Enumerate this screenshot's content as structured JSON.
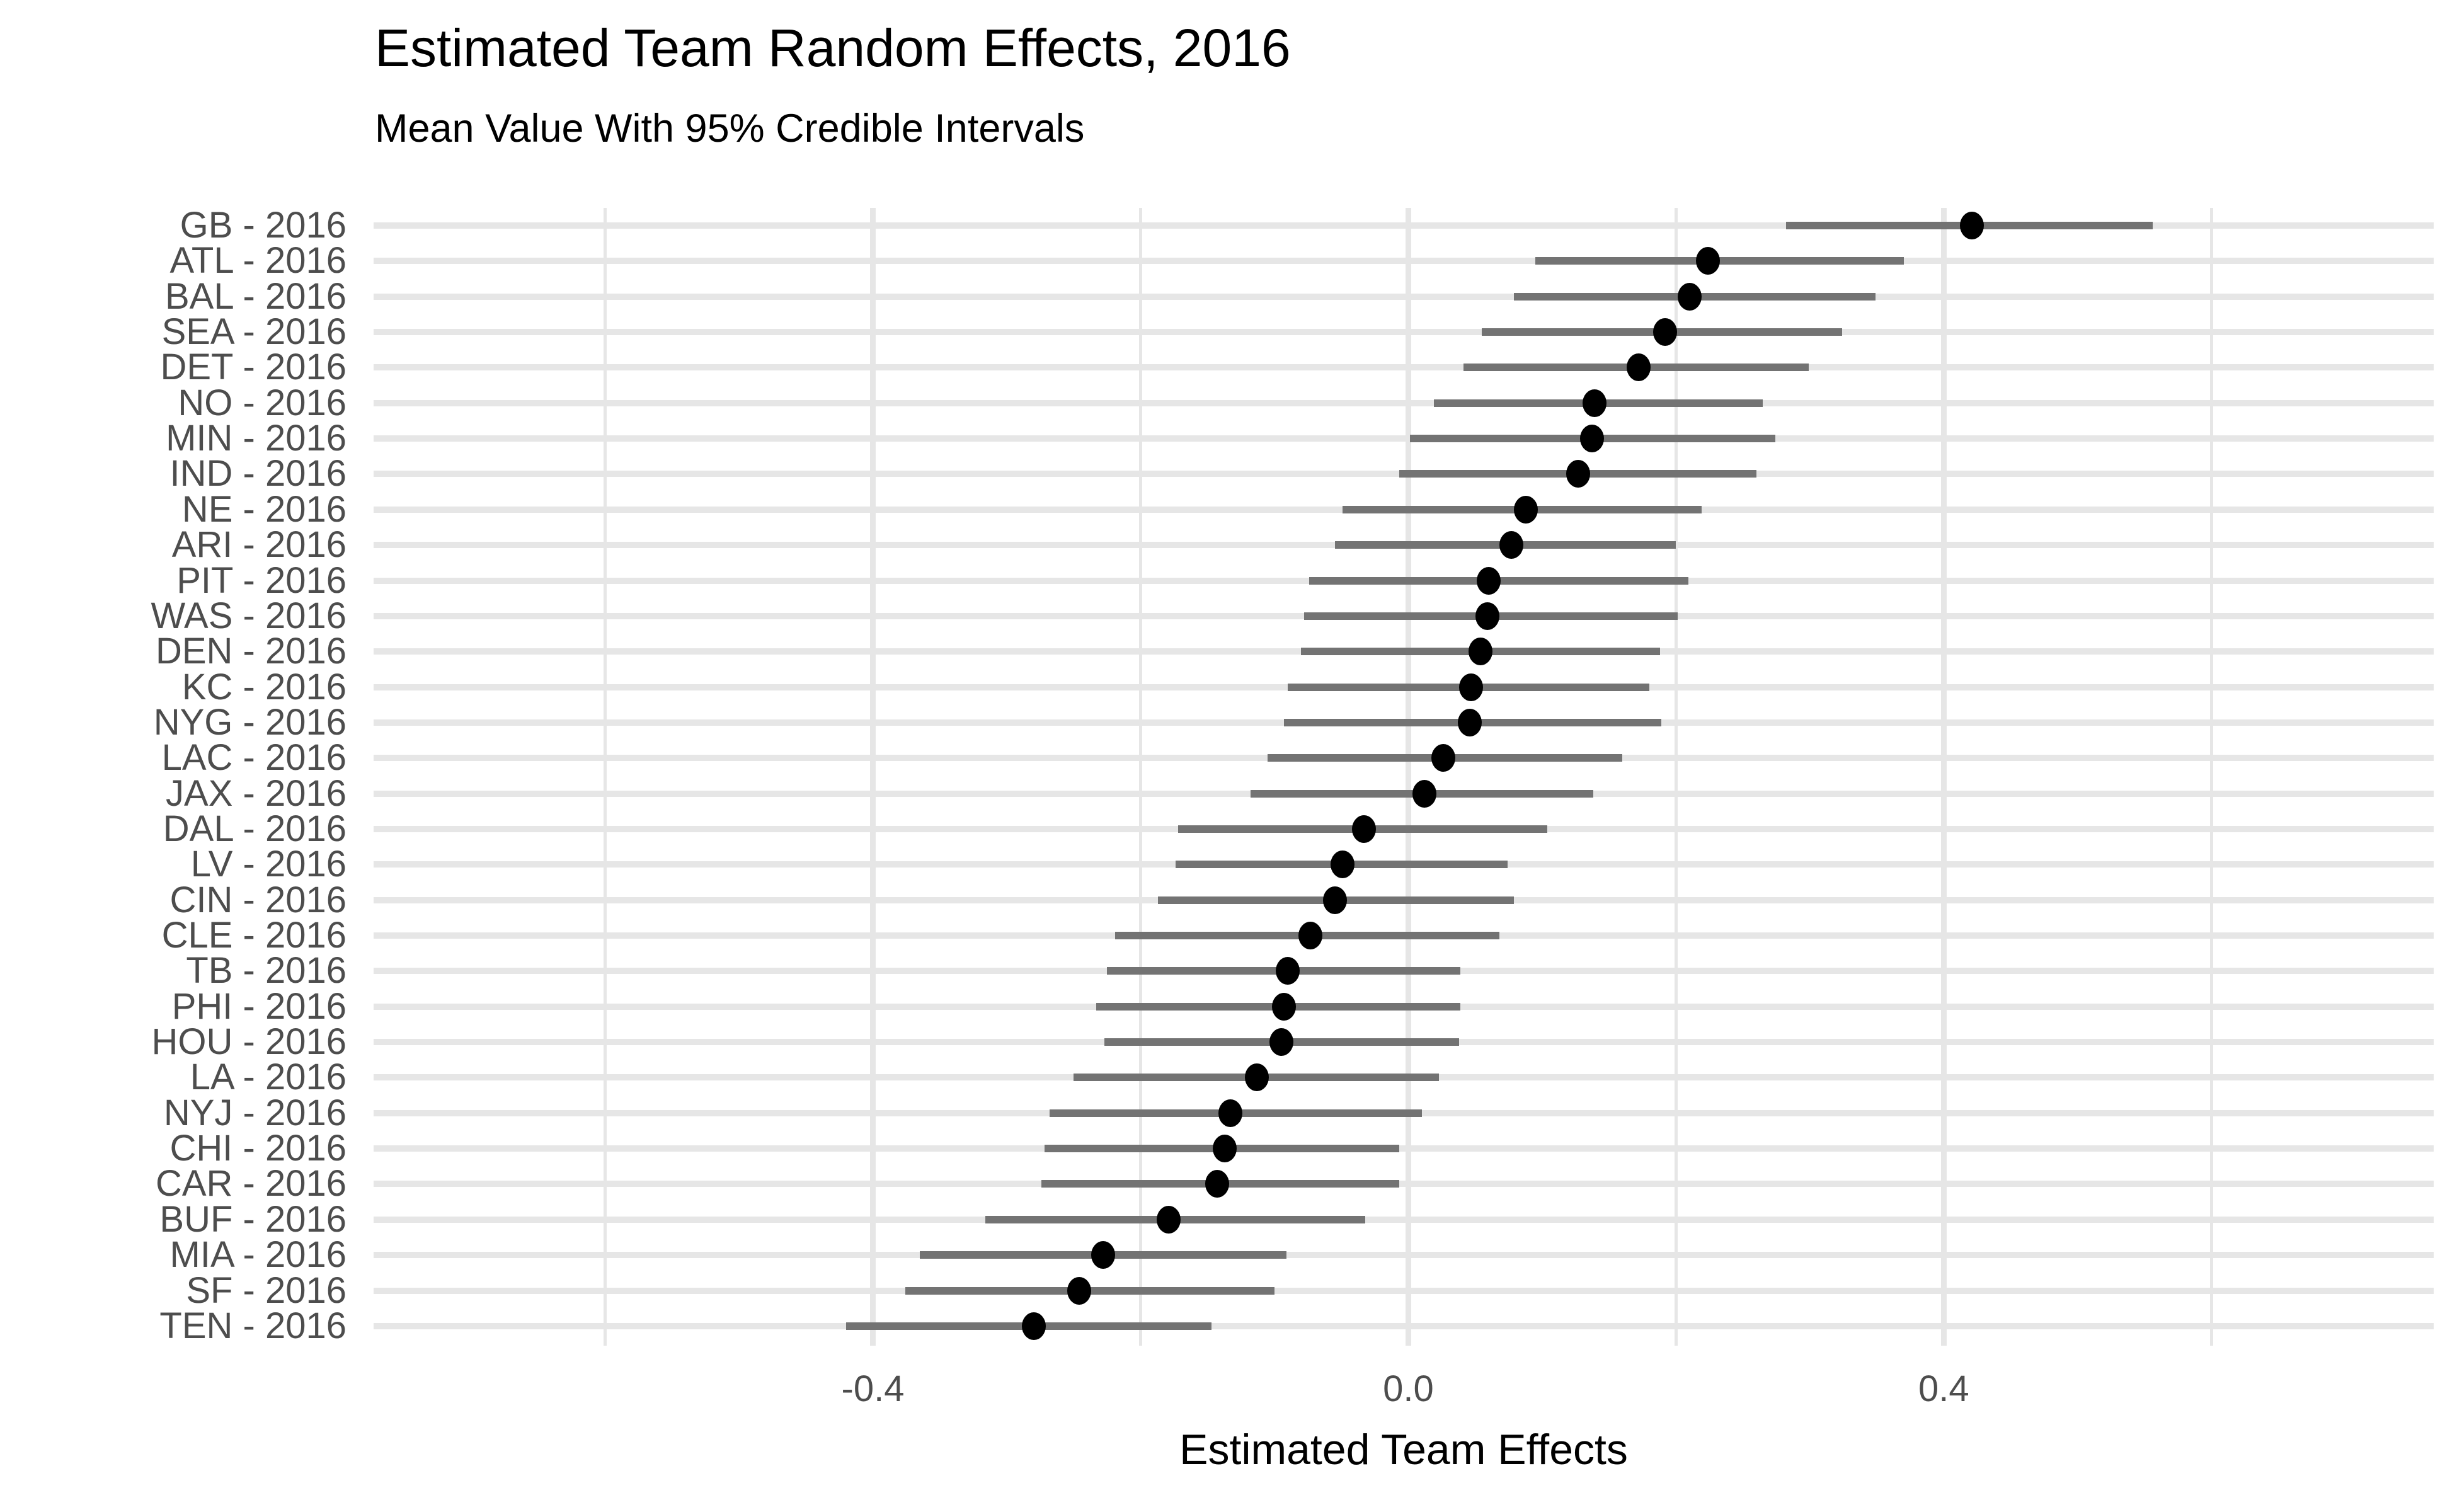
{
  "chart": {
    "title": "Estimated Team Random Effects, 2016",
    "subtitle": "Mean Value With 95% Credible Intervals",
    "x_axis_title": "Estimated Team Effects"
  },
  "colors": {
    "interval_bar": "#737373",
    "point": "#000000",
    "gridline": "#e6e6e6",
    "row_stripe": "#e6e6e6",
    "axis_text": "#4d4d4d",
    "title_text": "#000000",
    "background": "#ffffff"
  },
  "chart_data": {
    "type": "scatter",
    "subtype": "pointrange-forest",
    "title": "Estimated Team Random Effects, 2016",
    "subtitle": "Mean Value With 95% Credible Intervals",
    "xlabel": "Estimated Team Effects",
    "ylabel": "",
    "xlim": [
      -0.773,
      0.766
    ],
    "grid": "on",
    "legend": "none",
    "x_ticks": [
      {
        "value": -0.4,
        "label": "-0.4"
      },
      {
        "value": 0.0,
        "label": "0.0"
      },
      {
        "value": 0.4,
        "label": "0.4"
      }
    ],
    "x_gridlines_minor": [
      -0.6,
      -0.2,
      0.2,
      0.6
    ],
    "points": [
      {
        "label": "GB - 2016",
        "team": "GB",
        "year": 2016,
        "mean": 0.421,
        "lower": 0.282,
        "upper": 0.556
      },
      {
        "label": "ATL - 2016",
        "team": "ATL",
        "year": 2016,
        "mean": 0.224,
        "lower": 0.095,
        "upper": 0.37
      },
      {
        "label": "BAL - 2016",
        "team": "BAL",
        "year": 2016,
        "mean": 0.21,
        "lower": 0.079,
        "upper": 0.349
      },
      {
        "label": "SEA - 2016",
        "team": "SEA",
        "year": 2016,
        "mean": 0.192,
        "lower": 0.055,
        "upper": 0.324
      },
      {
        "label": "DET - 2016",
        "team": "DET",
        "year": 2016,
        "mean": 0.172,
        "lower": 0.041,
        "upper": 0.299
      },
      {
        "label": "NO - 2016",
        "team": "NO",
        "year": 2016,
        "mean": 0.139,
        "lower": 0.019,
        "upper": 0.265
      },
      {
        "label": "MIN - 2016",
        "team": "MIN",
        "year": 2016,
        "mean": 0.137,
        "lower": 0.001,
        "upper": 0.274
      },
      {
        "label": "IND - 2016",
        "team": "IND",
        "year": 2016,
        "mean": 0.127,
        "lower": -0.007,
        "upper": 0.26
      },
      {
        "label": "NE - 2016",
        "team": "NE",
        "year": 2016,
        "mean": 0.088,
        "lower": -0.049,
        "upper": 0.219
      },
      {
        "label": "ARI - 2016",
        "team": "ARI",
        "year": 2016,
        "mean": 0.077,
        "lower": -0.055,
        "upper": 0.2
      },
      {
        "label": "PIT - 2016",
        "team": "PIT",
        "year": 2016,
        "mean": 0.06,
        "lower": -0.074,
        "upper": 0.209
      },
      {
        "label": "WAS - 2016",
        "team": "WAS",
        "year": 2016,
        "mean": 0.059,
        "lower": -0.078,
        "upper": 0.201
      },
      {
        "label": "DEN - 2016",
        "team": "DEN",
        "year": 2016,
        "mean": 0.054,
        "lower": -0.08,
        "upper": 0.188
      },
      {
        "label": "KC - 2016",
        "team": "KC",
        "year": 2016,
        "mean": 0.047,
        "lower": -0.09,
        "upper": 0.18
      },
      {
        "label": "NYG - 2016",
        "team": "NYG",
        "year": 2016,
        "mean": 0.046,
        "lower": -0.093,
        "upper": 0.189
      },
      {
        "label": "LAC - 2016",
        "team": "LAC",
        "year": 2016,
        "mean": 0.026,
        "lower": -0.105,
        "upper": 0.16
      },
      {
        "label": "JAX - 2016",
        "team": "JAX",
        "year": 2016,
        "mean": 0.012,
        "lower": -0.118,
        "upper": 0.138
      },
      {
        "label": "DAL - 2016",
        "team": "DAL",
        "year": 2016,
        "mean": -0.033,
        "lower": -0.172,
        "upper": 0.104
      },
      {
        "label": "LV - 2016",
        "team": "LV",
        "year": 2016,
        "mean": -0.049,
        "lower": -0.174,
        "upper": 0.074
      },
      {
        "label": "CIN - 2016",
        "team": "CIN",
        "year": 2016,
        "mean": -0.055,
        "lower": -0.187,
        "upper": 0.079
      },
      {
        "label": "CLE - 2016",
        "team": "CLE",
        "year": 2016,
        "mean": -0.073,
        "lower": -0.219,
        "upper": 0.068
      },
      {
        "label": "TB - 2016",
        "team": "TB",
        "year": 2016,
        "mean": -0.09,
        "lower": -0.225,
        "upper": 0.039
      },
      {
        "label": "PHI - 2016",
        "team": "PHI",
        "year": 2016,
        "mean": -0.093,
        "lower": -0.233,
        "upper": 0.039
      },
      {
        "label": "HOU - 2016",
        "team": "HOU",
        "year": 2016,
        "mean": -0.095,
        "lower": -0.227,
        "upper": 0.038
      },
      {
        "label": "LA - 2016",
        "team": "LA",
        "year": 2016,
        "mean": -0.113,
        "lower": -0.25,
        "upper": 0.023
      },
      {
        "label": "NYJ - 2016",
        "team": "NYJ",
        "year": 2016,
        "mean": -0.133,
        "lower": -0.268,
        "upper": 0.01
      },
      {
        "label": "CHI - 2016",
        "team": "CHI",
        "year": 2016,
        "mean": -0.137,
        "lower": -0.272,
        "upper": -0.007
      },
      {
        "label": "CAR - 2016",
        "team": "CAR",
        "year": 2016,
        "mean": -0.143,
        "lower": -0.274,
        "upper": -0.007
      },
      {
        "label": "BUF - 2016",
        "team": "BUF",
        "year": 2016,
        "mean": -0.179,
        "lower": -0.316,
        "upper": -0.032
      },
      {
        "label": "MIA - 2016",
        "team": "MIA",
        "year": 2016,
        "mean": -0.228,
        "lower": -0.365,
        "upper": -0.091
      },
      {
        "label": "SF - 2016",
        "team": "SF",
        "year": 2016,
        "mean": -0.246,
        "lower": -0.376,
        "upper": -0.1
      },
      {
        "label": "TEN - 2016",
        "team": "TEN",
        "year": 2016,
        "mean": -0.28,
        "lower": -0.42,
        "upper": -0.147
      }
    ]
  }
}
